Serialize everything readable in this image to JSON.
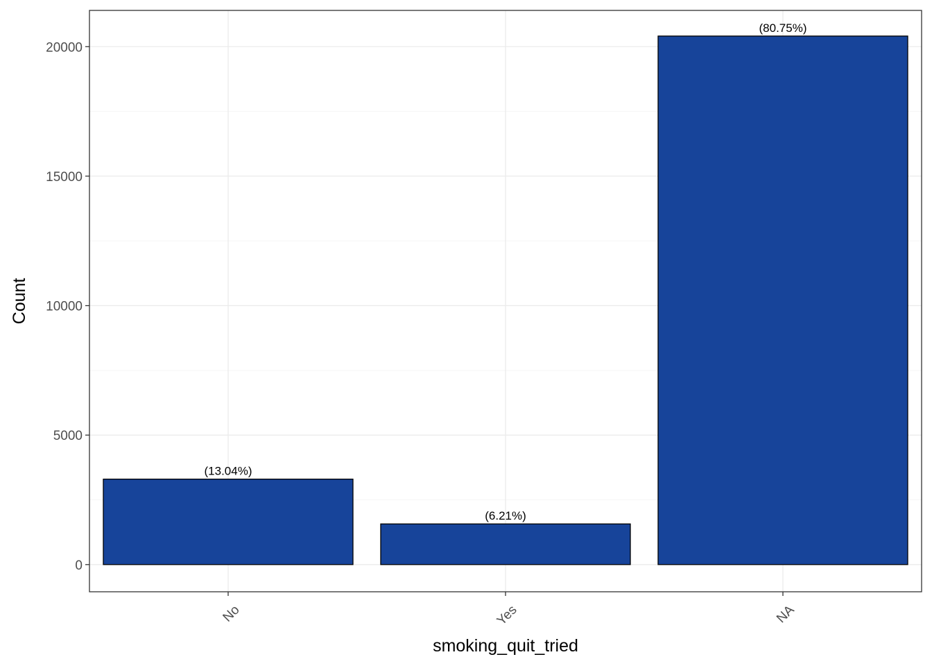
{
  "chart_data": {
    "type": "bar",
    "title": "",
    "xlabel": "smoking_quit_tried",
    "ylabel": "Count",
    "categories": [
      "No",
      "Yes",
      "NA"
    ],
    "values": [
      3300,
      1570,
      20410
    ],
    "data_labels": [
      "(13.04%)",
      "(6.21%)",
      "(80.75%)"
    ],
    "ylim": [
      -1050,
      21400
    ],
    "y_ticks": [
      0,
      5000,
      10000,
      15000,
      20000
    ],
    "y_tick_labels": [
      "0",
      "5000",
      "10000",
      "15000",
      "20000"
    ],
    "y_minor_ticks": [
      2500,
      7500,
      12500,
      17500
    ],
    "grid": true,
    "x_tick_rotation": "45-degree",
    "colors": {
      "bar_fill": "#17449A",
      "bar_stroke": "#000000",
      "grid_major": "#EBEBEB",
      "grid_minor": "#F5F5F5",
      "panel_border": "#333333"
    }
  }
}
